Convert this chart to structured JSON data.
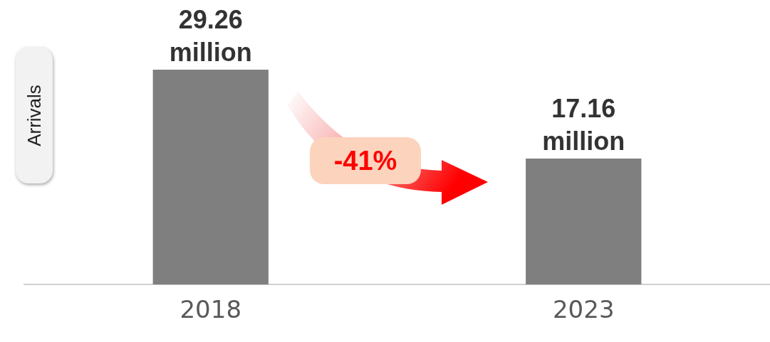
{
  "chart_data": {
    "type": "bar",
    "ylabel": "Arrivals",
    "categories": [
      "2018",
      "2023"
    ],
    "values": [
      29.26,
      17.16
    ],
    "color": "#7f7f7f",
    "value_labels": [
      "29.26 million",
      "17.16 million"
    ],
    "annotations": [
      "-41%"
    ]
  }
}
